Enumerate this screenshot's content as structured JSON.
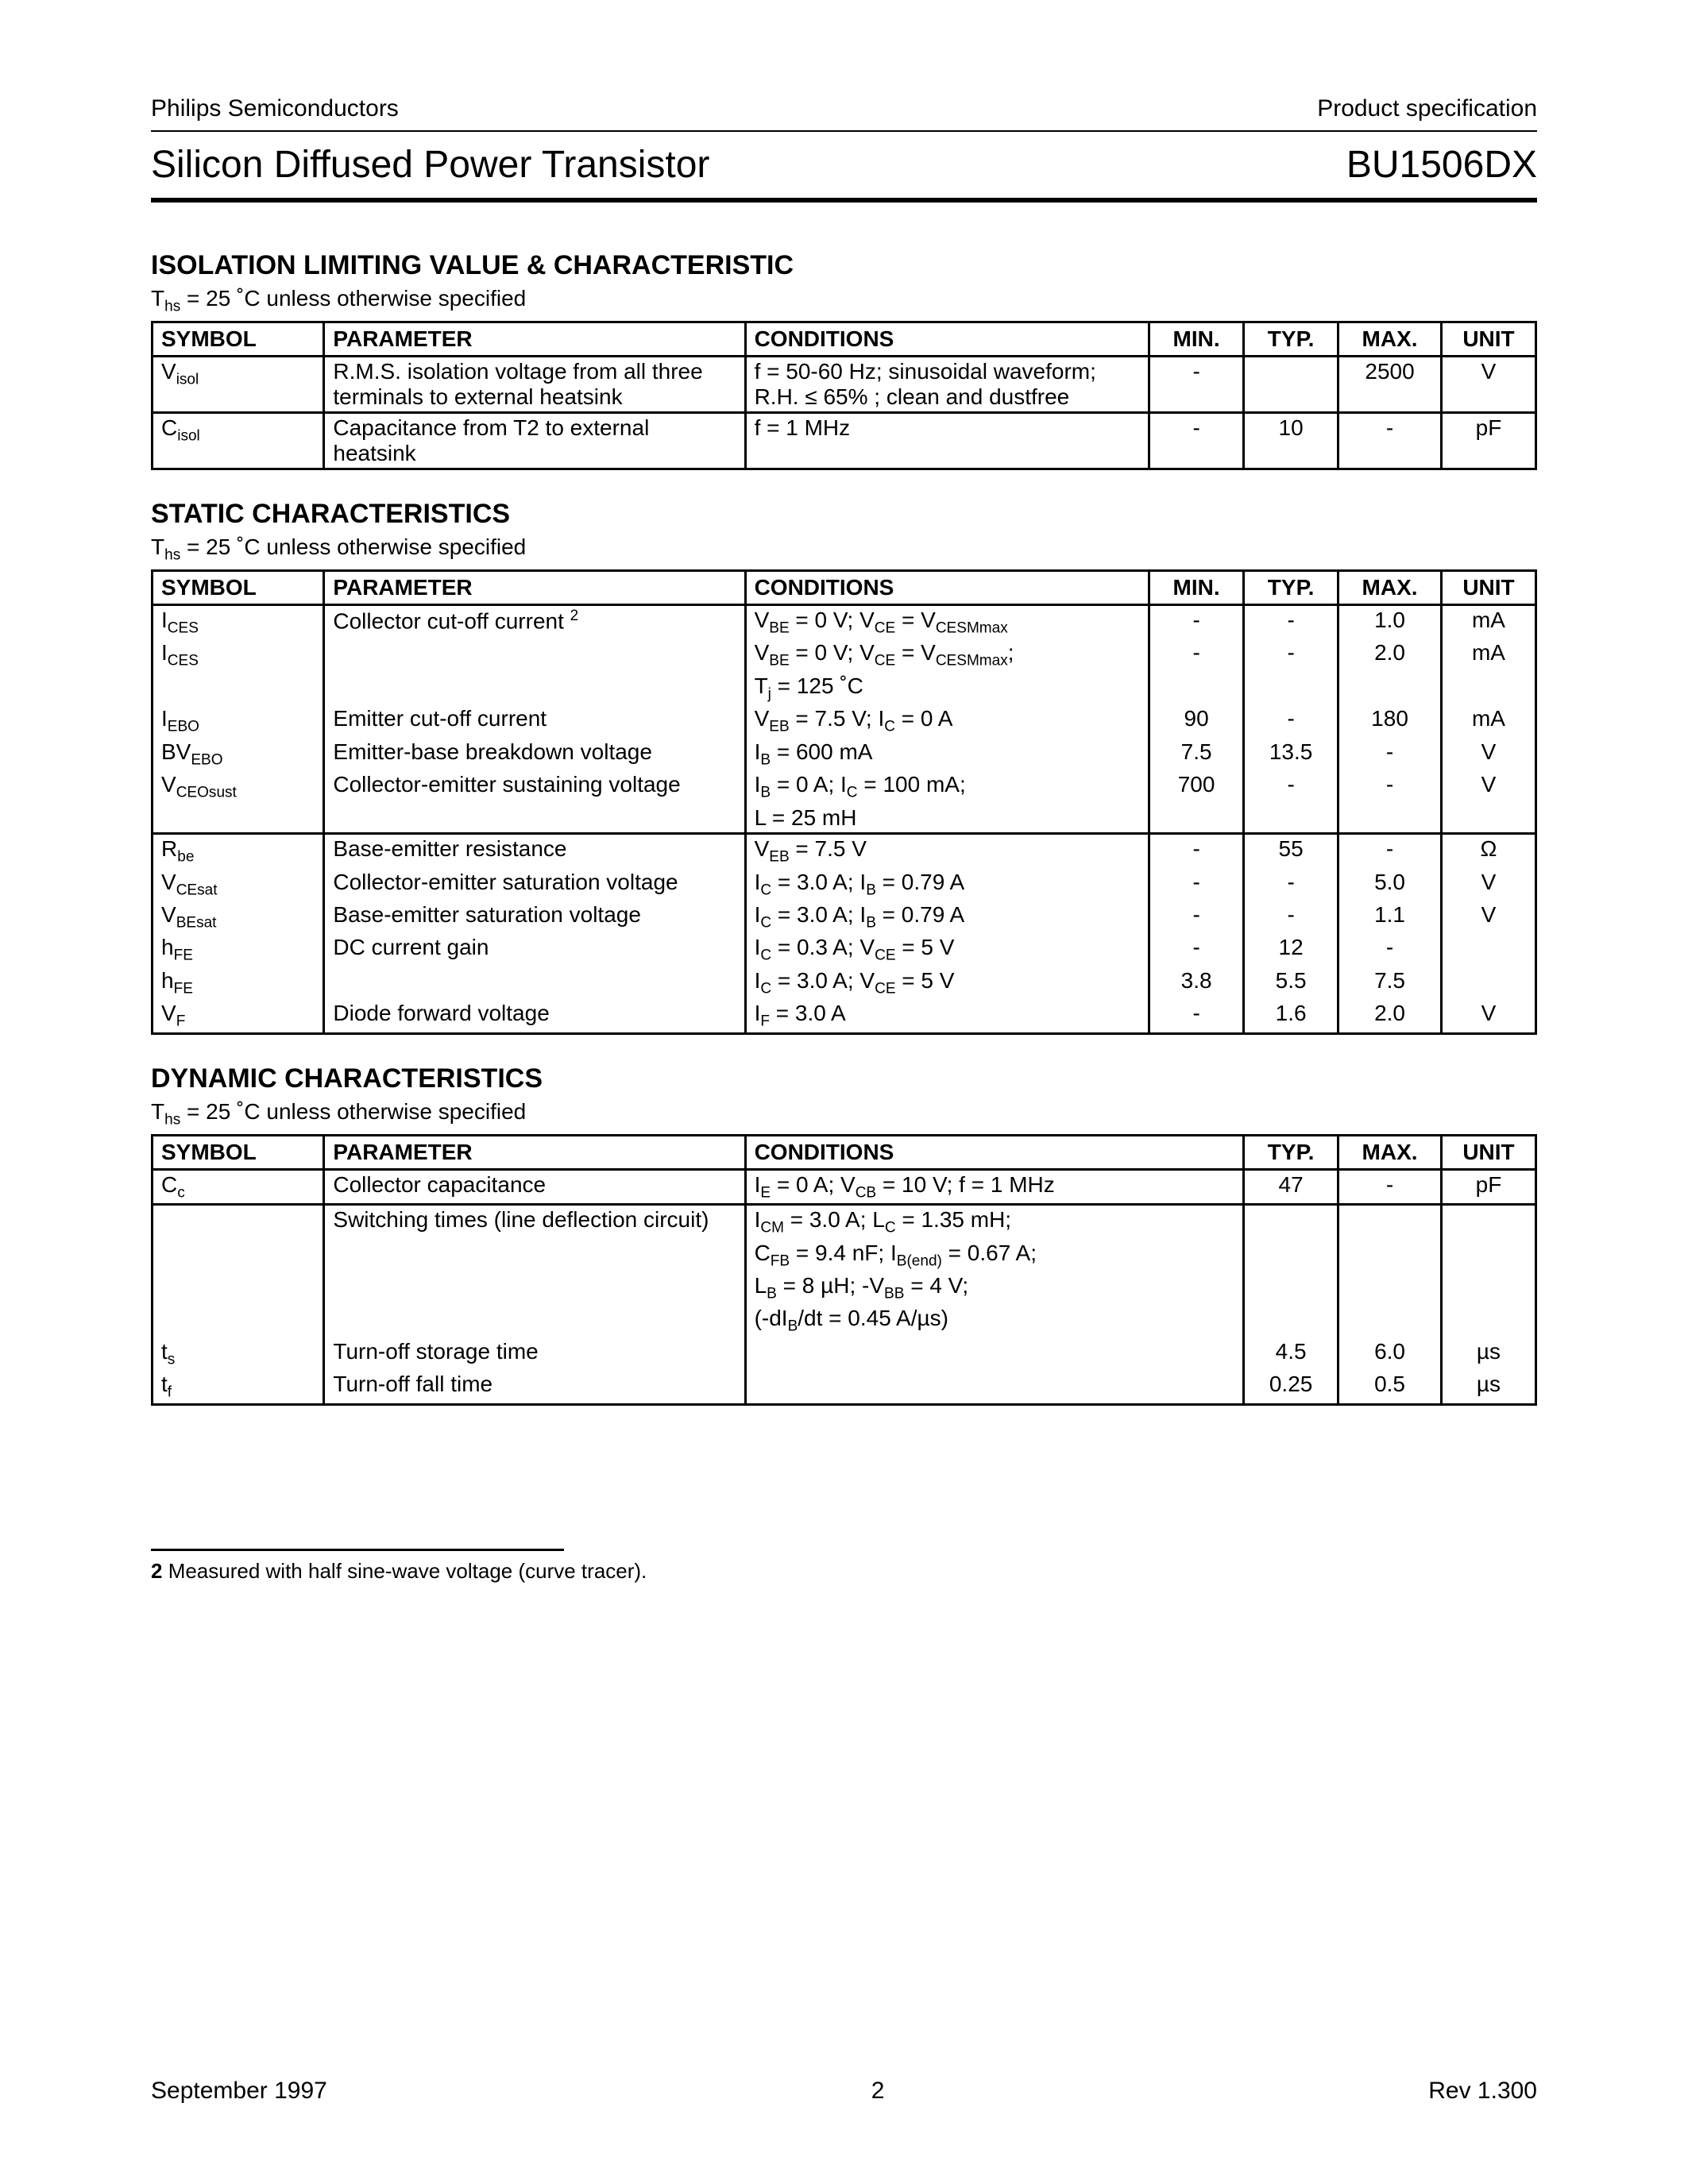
{
  "header": {
    "company": "Philips Semiconductors",
    "doctype": "Product specification",
    "title": "Silicon Diffused Power Transistor",
    "part": "BU1506DX"
  },
  "sections": {
    "isolation": {
      "title": "ISOLATION LIMITING VALUE & CHARACTERISTIC",
      "note_prefix": "T",
      "note_sub": "hs",
      "note_rest": " = 25 ˚C unless otherwise specified",
      "colwidths": [
        "200px",
        "490px",
        "470px",
        "110px",
        "110px",
        "120px",
        "110px"
      ],
      "headers": [
        "SYMBOL",
        "PARAMETER",
        "CONDITIONS",
        "MIN.",
        "TYP.",
        "MAX.",
        "UNIT"
      ]
    },
    "static": {
      "title": "STATIC CHARACTERISTICS",
      "note_prefix": "T",
      "note_sub": "hs",
      "note_rest": " = 25 ˚C unless otherwise specified",
      "colwidths": [
        "200px",
        "490px",
        "470px",
        "110px",
        "110px",
        "120px",
        "110px"
      ],
      "headers": [
        "SYMBOL",
        "PARAMETER",
        "CONDITIONS",
        "MIN.",
        "TYP.",
        "MAX.",
        "UNIT"
      ]
    },
    "dynamic": {
      "title": "DYNAMIC CHARACTERISTICS",
      "note_prefix": "T",
      "note_sub": "hs",
      "note_rest": " = 25 ˚C unless otherwise specified",
      "colwidths": [
        "200px",
        "490px",
        "580px",
        "110px",
        "120px",
        "110px"
      ],
      "headers": [
        "SYMBOL",
        "PARAMETER",
        "CONDITIONS",
        "TYP.",
        "MAX.",
        "UNIT"
      ]
    }
  },
  "isolation_rows": [
    {
      "sym_main": "V",
      "sym_sub": "isol",
      "param": "R.M.S. isolation voltage from all three terminals to external heatsink",
      "cond": "f = 50-60 Hz; sinusoidal waveform;\nR.H. ≤ 65% ; clean and dustfree",
      "min": "-",
      "typ": "",
      "max": "2500",
      "unit": "V"
    },
    {
      "sym_main": "C",
      "sym_sub": "isol",
      "param": "Capacitance from T2 to external heatsink",
      "cond": "f = 1 MHz",
      "min": "-",
      "typ": "10",
      "max": "-",
      "unit": "pF"
    }
  ],
  "static_rows_g1": [
    {
      "sym_html": "I<span class='sub'>CES</span>",
      "param": "Collector cut-off current <span class='sup'>2</span>",
      "cond_html": "V<span class='sub'>BE</span> = 0 V; V<span class='sub'>CE</span> = V<span class='sub'>CESMmax</span>",
      "min": "-",
      "typ": "-",
      "max": "1.0",
      "unit": "mA"
    },
    {
      "sym_html": "I<span class='sub'>CES</span>",
      "param": "",
      "cond_html": "V<span class='sub'>BE</span> = 0 V; V<span class='sub'>CE</span> = V<span class='sub'>CESMmax</span>;",
      "min": "-",
      "typ": "-",
      "max": "2.0",
      "unit": "mA"
    },
    {
      "sym_html": "",
      "param": "",
      "cond_html": "T<span class='sub'>j</span> = 125 ˚C",
      "min": "",
      "typ": "",
      "max": "",
      "unit": ""
    },
    {
      "sym_html": "I<span class='sub'>EBO</span>",
      "param": "Emitter cut-off current",
      "cond_html": "V<span class='sub'>EB</span> = 7.5 V; I<span class='sub'>C</span> = 0 A",
      "min": "90",
      "typ": "-",
      "max": "180",
      "unit": "mA"
    },
    {
      "sym_html": "BV<span class='sub'>EBO</span>",
      "param": "Emitter-base breakdown voltage",
      "cond_html": "I<span class='sub'>B</span> = 600 mA",
      "min": "7.5",
      "typ": "13.5",
      "max": "-",
      "unit": "V"
    },
    {
      "sym_html": "V<span class='sub'>CEOsust</span>",
      "param": "Collector-emitter sustaining voltage",
      "cond_html": "I<span class='sub'>B</span> = 0 A; I<span class='sub'>C</span> = 100 mA;",
      "min": "700",
      "typ": "-",
      "max": "-",
      "unit": "V"
    },
    {
      "sym_html": "",
      "param": "",
      "cond_html": "L = 25 mH",
      "min": "",
      "typ": "",
      "max": "",
      "unit": ""
    }
  ],
  "static_rows_g2": [
    {
      "sym_html": "R<span class='sub'>be</span>",
      "param": "Base-emitter resistance",
      "cond_html": "V<span class='sub'>EB</span> = 7.5 V",
      "min": "-",
      "typ": "55",
      "max": "-",
      "unit": "Ω"
    },
    {
      "sym_html": "V<span class='sub'>CEsat</span>",
      "param": "Collector-emitter saturation voltage",
      "cond_html": "I<span class='sub'>C</span> = 3.0 A; I<span class='sub'>B</span> = 0.79 A",
      "min": "-",
      "typ": "-",
      "max": "5.0",
      "unit": "V"
    },
    {
      "sym_html": "V<span class='sub'>BEsat</span>",
      "param": "Base-emitter saturation voltage",
      "cond_html": "I<span class='sub'>C</span> = 3.0 A; I<span class='sub'>B</span> = 0.79 A",
      "min": "-",
      "typ": "-",
      "max": "1.1",
      "unit": "V"
    },
    {
      "sym_html": "h<span class='sub'>FE</span>",
      "param": "DC current gain",
      "cond_html": "I<span class='sub'>C</span> = 0.3 A; V<span class='sub'>CE</span> = 5 V",
      "min": "-",
      "typ": "12",
      "max": "-",
      "unit": ""
    },
    {
      "sym_html": "h<span class='sub'>FE</span>",
      "param": "",
      "cond_html": "I<span class='sub'>C</span> = 3.0 A; V<span class='sub'>CE</span> = 5 V",
      "min": "3.8",
      "typ": "5.5",
      "max": "7.5",
      "unit": ""
    },
    {
      "sym_html": "V<span class='sub'>F</span>",
      "param": "Diode forward voltage",
      "cond_html": "I<span class='sub'>F</span> = 3.0 A",
      "min": "-",
      "typ": "1.6",
      "max": "2.0",
      "unit": "V"
    }
  ],
  "dynamic_rows": [
    {
      "sym_html": "C<span class='sub'>c</span>",
      "param": "Collector capacitance",
      "cond_html": "I<span class='sub'>E</span> = 0 A; V<span class='sub'>CB</span> = 10 V; f = 1 MHz",
      "typ": "47",
      "max": "-",
      "unit": "pF"
    },
    {
      "sym_html": "",
      "param": "Switching times (line deflection circuit)",
      "cond_html": "I<span class='sub'>CM</span> = 3.0 A; L<span class='sub'>C</span> = 1.35 mH;",
      "typ": "",
      "max": "",
      "unit": ""
    },
    {
      "sym_html": "",
      "param": "",
      "cond_html": "C<span class='sub'>FB</span> = 9.4 nF; I<span class='sub'>B(end)</span> = 0.67 A;",
      "typ": "",
      "max": "",
      "unit": ""
    },
    {
      "sym_html": "",
      "param": "",
      "cond_html": "L<span class='sub'>B</span> = 8 µH; -V<span class='sub'>BB</span> = 4 V;",
      "typ": "",
      "max": "",
      "unit": ""
    },
    {
      "sym_html": "",
      "param": "",
      "cond_html": "(-dI<span class='sub'>B</span>/dt = 0.45 A/µs)",
      "typ": "",
      "max": "",
      "unit": ""
    },
    {
      "sym_html": "t<span class='sub'>s</span>",
      "param": "Turn-off storage time",
      "cond_html": "",
      "typ": "4.5",
      "max": "6.0",
      "unit": "µs"
    },
    {
      "sym_html": "t<span class='sub'>f</span>",
      "param": "Turn-off fall time",
      "cond_html": "",
      "typ": "0.25",
      "max": "0.5",
      "unit": "µs"
    }
  ],
  "footnote": {
    "num": "2",
    "text": " Measured with half sine-wave voltage (curve tracer)."
  },
  "footer": {
    "date": "September 1997",
    "page": "2",
    "rev": "Rev 1.300"
  }
}
